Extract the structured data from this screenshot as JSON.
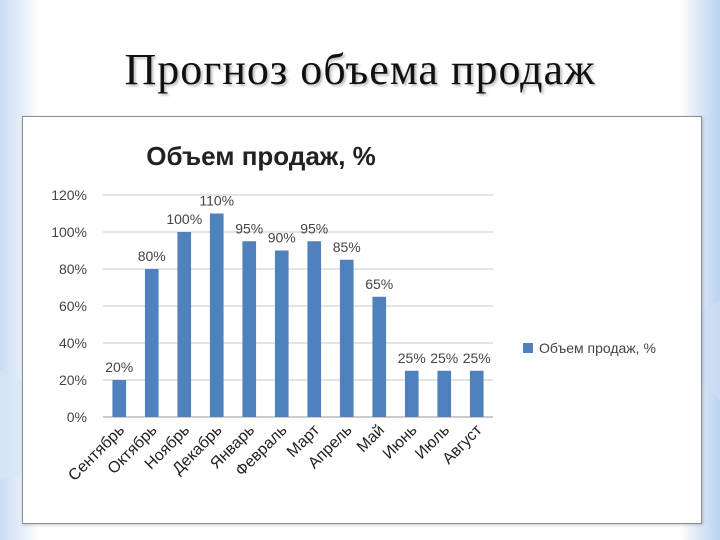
{
  "slide": {
    "title": "Прогноз объема продаж"
  },
  "colors": {
    "bar": "#4F81BD",
    "grid": "#c8c8c8",
    "axis": "#9a9a9a"
  },
  "chart_data": {
    "type": "bar",
    "title": "Объем продаж, %",
    "categories": [
      "Сентябрь",
      "Октябрь",
      "Ноябрь",
      "Декабрь",
      "Январь",
      "Февраль",
      "Март",
      "Апрель",
      "Май",
      "Июнь",
      "Июль",
      "Август"
    ],
    "series": [
      {
        "name": "Объем продаж, %",
        "values": [
          20,
          80,
          100,
          110,
          95,
          90,
          95,
          85,
          65,
          25,
          25,
          25
        ],
        "value_labels": [
          "20%",
          "80%",
          "100%",
          "110%",
          "95%",
          "90%",
          "95%",
          "85%",
          "65%",
          "25%",
          "25%",
          "25%"
        ]
      }
    ],
    "ylim": [
      0,
      120
    ],
    "yticks": [
      0,
      20,
      40,
      60,
      80,
      100,
      120
    ],
    "ytick_labels": [
      "0%",
      "20%",
      "40%",
      "60%",
      "80%",
      "100%",
      "120%"
    ],
    "grid": true,
    "legend_position": "right"
  }
}
